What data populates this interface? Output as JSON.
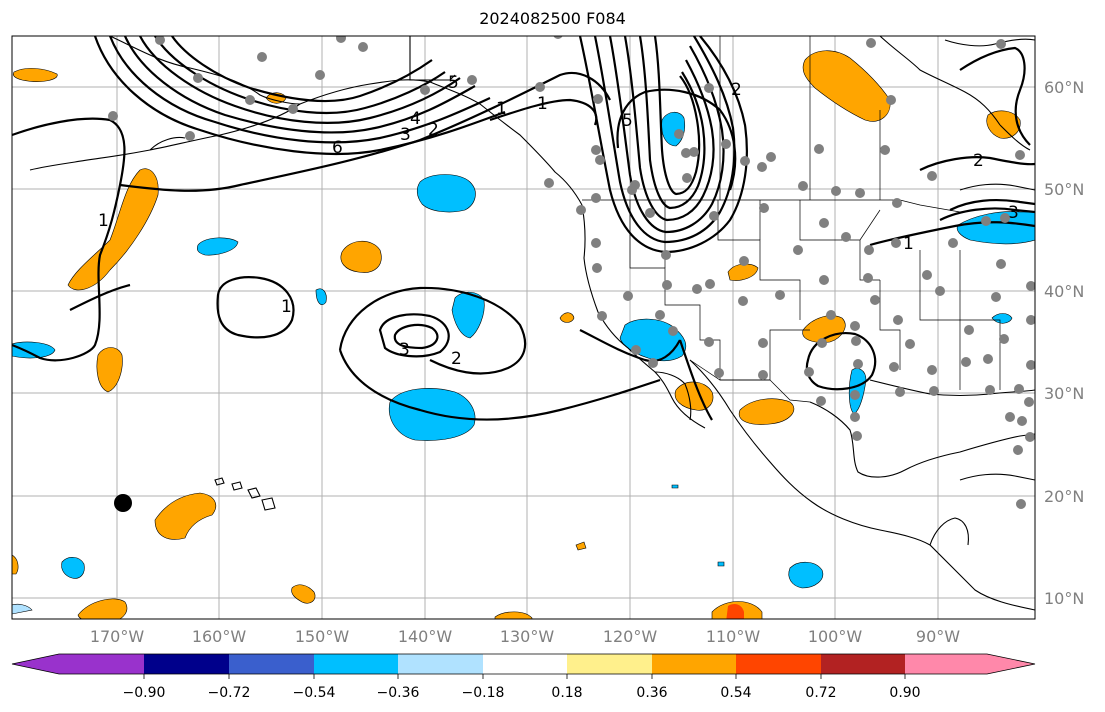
{
  "title": "2024082500 F084",
  "map": {
    "latitude_labels": [
      "60°N",
      "50°N",
      "40°N",
      "30°N",
      "20°N",
      "10°N"
    ],
    "longitude_labels": [
      "170°W",
      "160°W",
      "150°W",
      "140°W",
      "130°W",
      "120°W",
      "110°W",
      "100°W",
      "90°W"
    ],
    "contour_labels": [
      "5",
      "4",
      "3",
      "2",
      "1",
      "6",
      "5",
      "2",
      "1",
      "2",
      "3",
      "1",
      "1",
      "3",
      "2",
      "1"
    ],
    "colors": {
      "positive_fill": "#ffa500",
      "negative_fill": "#00bfff",
      "station_dot": "#808080",
      "marker": "#000000"
    }
  },
  "colorbar": {
    "tick_labels": [
      "−0.90",
      "−0.72",
      "−0.54",
      "−0.36",
      "−0.18",
      "0.18",
      "0.36",
      "0.54",
      "0.72",
      "0.90"
    ],
    "colors": [
      "#9932cc",
      "#00008b",
      "#3a5fcd",
      "#00bfff",
      "#b0e2ff",
      "#ffffff",
      "#fff08c",
      "#ffa500",
      "#ff4500",
      "#b22222",
      "#ff88aa"
    ]
  }
}
